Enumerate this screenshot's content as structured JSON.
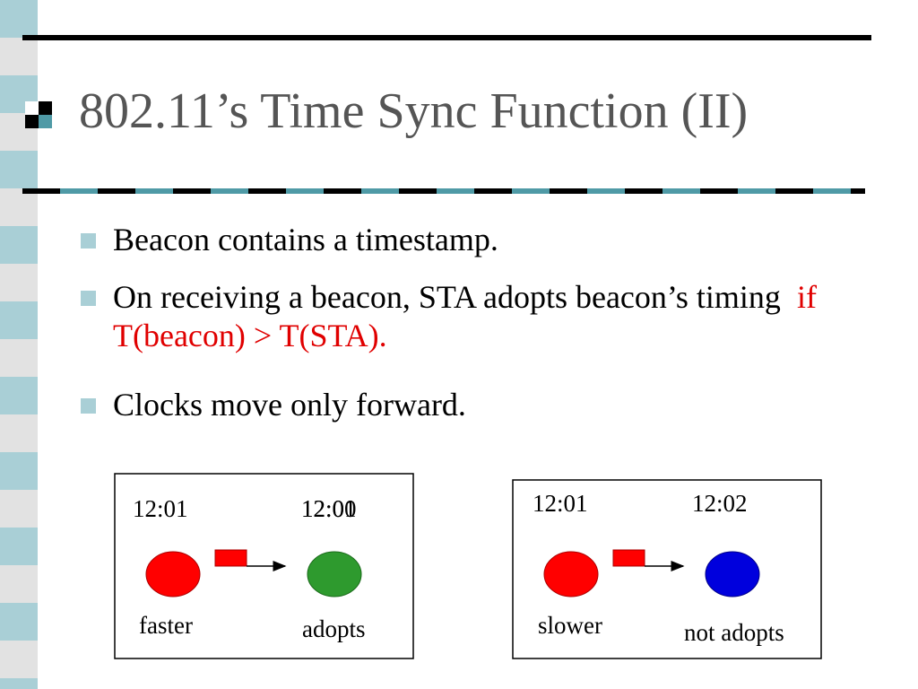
{
  "title": "802.11’s Time Sync Function (II)",
  "bullets": [
    {
      "text": "Beacon contains a timestamp."
    },
    {
      "text": "On receiving a beacon, STA adopts beacon’s timing",
      "highlight": "if T(beacon) > T(STA)."
    },
    {
      "text": "Clocks move only forward."
    }
  ],
  "diagrams": [
    {
      "sender_time": "12:01",
      "receiver_times": [
        "12:00",
        "12:01"
      ],
      "sender_label": "faster",
      "receiver_label": "adopts"
    },
    {
      "sender_time": "12:01",
      "receiver_times": [
        "12:02"
      ],
      "sender_label": "slower",
      "receiver_label": "not adopts"
    }
  ]
}
